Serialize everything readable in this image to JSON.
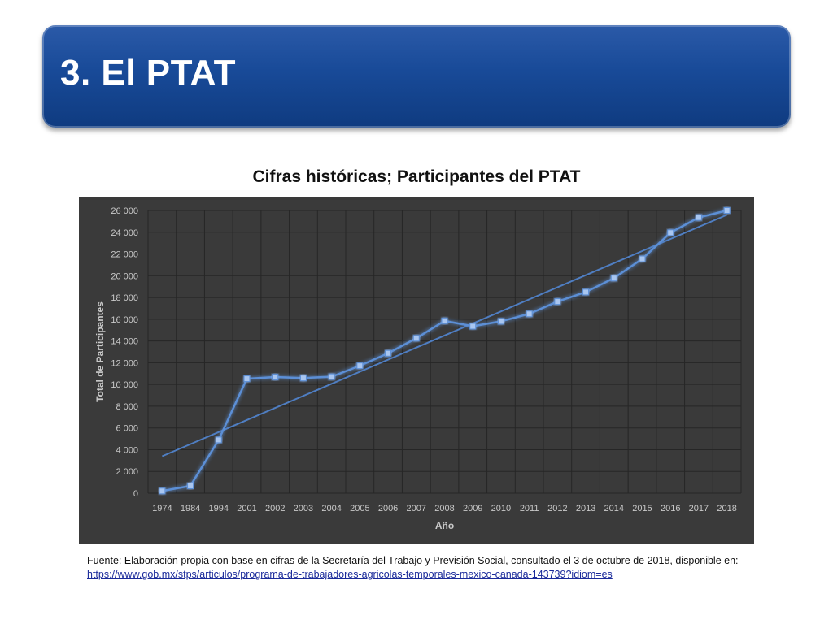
{
  "slide": {
    "title": "3. El PTAT"
  },
  "chart_data": {
    "type": "line",
    "title": "Cifras históricas; Participantes del PTAT",
    "xlabel": "Año",
    "ylabel": "Total de Participantes",
    "categories": [
      "1974",
      "1984",
      "1994",
      "2001",
      "2002",
      "2003",
      "2004",
      "2005",
      "2006",
      "2007",
      "2008",
      "2009",
      "2010",
      "2011",
      "2012",
      "2013",
      "2014",
      "2015",
      "2016",
      "2017",
      "2018"
    ],
    "series": [
      {
        "values": [
          203,
          675,
          4900,
          10529,
          10681,
          10595,
          10708,
          11720,
          12868,
          14249,
          15849,
          15352,
          15809,
          16493,
          17626,
          18499,
          19783,
          21552,
          23959,
          25355,
          25999
        ]
      }
    ],
    "trendline": {
      "type": "linear",
      "start": 3400,
      "end": 25600
    },
    "ylim": [
      0,
      26000
    ],
    "yticks": [
      0,
      2000,
      4000,
      6000,
      8000,
      10000,
      12000,
      14000,
      16000,
      18000,
      20000,
      22000,
      24000,
      26000
    ],
    "ytick_labels": [
      "0",
      "2 000",
      "4 000",
      "6 000",
      "8 000",
      "10 000",
      "12 000",
      "14 000",
      "16 000",
      "18 000",
      "20 000",
      "22 000",
      "24 000",
      "26 000"
    ],
    "grid": true,
    "colors": {
      "background": "#3a3a3a",
      "line": "#5b8fd6",
      "marker": "#a9c6f0",
      "trend": "#4f7ec2",
      "grid": "#262626",
      "text": "#c9c9c9"
    }
  },
  "source": {
    "text": "Fuente: Elaboración propia con base en cifras de la Secretaría del Trabajo y Previsión Social, consultado el 3 de octubre de 2018, disponible en: ",
    "link": "https://www.gob.mx/stps/articulos/programa-de-trabajadores-agricolas-temporales-mexico-canada-143739?idiom=es"
  }
}
